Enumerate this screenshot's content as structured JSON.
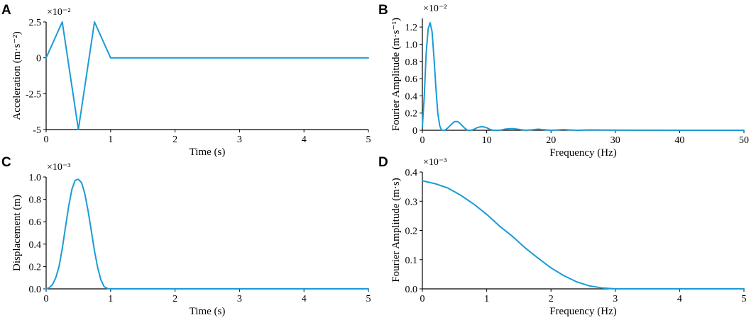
{
  "line_color": "#1a9bd7",
  "chart_data": [
    {
      "panel": "A",
      "type": "line",
      "title": "",
      "xlabel": "Time (s)",
      "ylabel": "Acceleration (m·s⁻²)",
      "y_exponent": "×10⁻²",
      "xlim": [
        0,
        5
      ],
      "ylim": [
        -5,
        2.5
      ],
      "xticks": [
        0,
        1,
        2,
        3,
        4,
        5
      ],
      "xtick_labels": [
        "0",
        "1",
        "2",
        "3",
        "4",
        "5"
      ],
      "yticks": [
        -5,
        -2.5,
        0,
        2.5
      ],
      "ytick_labels": [
        "-5",
        "-2.5",
        "0",
        "2.5"
      ],
      "grid": false,
      "series": [
        {
          "x": [
            0,
            0.25,
            0.5,
            0.75,
            1.0,
            5.0
          ],
          "y": [
            0,
            2.5,
            -5,
            2.5,
            0,
            0
          ]
        }
      ]
    },
    {
      "panel": "B",
      "type": "line",
      "title": "",
      "xlabel": "Frequency (Hz)",
      "ylabel": "Fourier Amplitude (m·s⁻¹)",
      "y_exponent": "×10⁻²",
      "xlim": [
        0,
        50
      ],
      "ylim": [
        0,
        1.3
      ],
      "xticks": [
        0,
        10,
        20,
        30,
        40,
        50
      ],
      "xtick_labels": [
        "0",
        "10",
        "20",
        "30",
        "40",
        "50"
      ],
      "yticks": [
        0,
        0.2,
        0.4,
        0.6,
        0.8,
        1.0,
        1.2
      ],
      "ytick_labels": [
        "0",
        "0.2",
        "0.4",
        "0.6",
        "0.8",
        "1.0",
        "1.2"
      ],
      "grid": false,
      "series": [
        {
          "x": [
            0,
            0.3,
            0.6,
            0.9,
            1.2,
            1.5,
            1.8,
            2.1,
            2.4,
            2.7,
            3.0,
            3.5,
            4.0,
            4.5,
            5.0,
            5.5,
            6.0,
            6.5,
            7.0,
            7.5,
            8.0,
            8.5,
            9.0,
            9.5,
            10.0,
            10.5,
            11.0,
            11.5,
            12.0,
            13.0,
            14.0,
            15.0,
            16.0,
            17.0,
            18.0,
            19.0,
            20.0,
            21.0,
            22.0,
            23.0,
            24.0,
            26.0,
            30.0,
            35.0,
            40.0,
            45.0,
            50.0
          ],
          "y": [
            0.04,
            0.4,
            0.9,
            1.18,
            1.25,
            1.15,
            0.85,
            0.5,
            0.2,
            0.05,
            0.0,
            0.0,
            0.03,
            0.07,
            0.1,
            0.1,
            0.07,
            0.03,
            0.0,
            0.0,
            0.01,
            0.03,
            0.04,
            0.04,
            0.03,
            0.01,
            0.0,
            0.0,
            0.0,
            0.015,
            0.02,
            0.01,
            0.0,
            0.005,
            0.012,
            0.006,
            0.0,
            0.004,
            0.008,
            0.003,
            0.0,
            0.004,
            0.002,
            0.001,
            0.0,
            0.0,
            0.0
          ]
        }
      ]
    },
    {
      "panel": "C",
      "type": "line",
      "title": "",
      "xlabel": "Time (s)",
      "ylabel": "Displacement (m)",
      "y_exponent": "×10⁻³",
      "xlim": [
        0,
        5
      ],
      "ylim": [
        0,
        1.0
      ],
      "xticks": [
        0,
        1,
        2,
        3,
        4,
        5
      ],
      "xtick_labels": [
        "0",
        "1",
        "2",
        "3",
        "4",
        "5"
      ],
      "yticks": [
        0,
        0.2,
        0.4,
        0.6,
        0.8,
        1.0
      ],
      "ytick_labels": [
        "0.0",
        "0.2",
        "0.4",
        "0.6",
        "0.8",
        "1.0"
      ],
      "grid": false,
      "series": [
        {
          "x": [
            0,
            0.05,
            0.1,
            0.15,
            0.2,
            0.25,
            0.3,
            0.35,
            0.4,
            0.45,
            0.5,
            0.55,
            0.6,
            0.65,
            0.7,
            0.75,
            0.8,
            0.85,
            0.9,
            0.95,
            1.0,
            5.0
          ],
          "y": [
            0,
            0.01,
            0.04,
            0.1,
            0.2,
            0.36,
            0.55,
            0.74,
            0.89,
            0.97,
            0.98,
            0.95,
            0.85,
            0.7,
            0.52,
            0.34,
            0.19,
            0.08,
            0.02,
            0.003,
            0,
            0
          ]
        }
      ]
    },
    {
      "panel": "D",
      "type": "line",
      "title": "",
      "xlabel": "Frequency (Hz)",
      "ylabel": "Fourier Amplitude (m·s)",
      "y_exponent": "×10⁻³",
      "xlim": [
        0,
        5
      ],
      "ylim": [
        0,
        0.4
      ],
      "xticks": [
        0,
        1,
        2,
        3,
        4,
        5
      ],
      "xtick_labels": [
        "0",
        "1",
        "2",
        "3",
        "4",
        "5"
      ],
      "yticks": [
        0,
        0.1,
        0.2,
        0.3,
        0.4
      ],
      "ytick_labels": [
        "0.0",
        "0.1",
        "0.2",
        "0.3",
        "0.4"
      ],
      "grid": false,
      "series": [
        {
          "x": [
            0,
            0.2,
            0.4,
            0.6,
            0.8,
            1.0,
            1.2,
            1.4,
            1.6,
            1.8,
            2.0,
            2.2,
            2.4,
            2.6,
            2.8,
            3.0,
            3.5,
            4.0,
            4.5,
            5.0
          ],
          "y": [
            0.37,
            0.36,
            0.345,
            0.32,
            0.29,
            0.255,
            0.215,
            0.18,
            0.14,
            0.105,
            0.072,
            0.045,
            0.024,
            0.01,
            0.003,
            0.0,
            0.0,
            0.0,
            0.0,
            0.0
          ]
        }
      ]
    }
  ]
}
